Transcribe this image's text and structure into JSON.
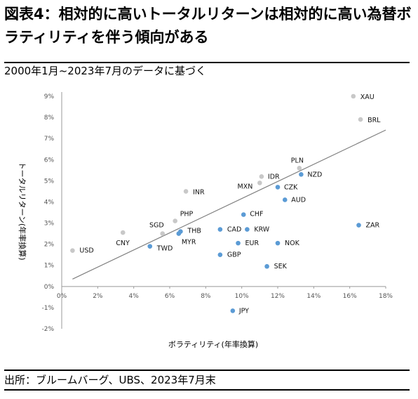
{
  "header": {
    "title": "図表4：相対的に高いトータルリターンは相対的に高い為替ボラティリティを伴う傾向がある",
    "subtitle": "2000年1月~2023年7月のデータに基づく"
  },
  "footer": {
    "source": "出所：ブルームバーグ、UBS、2023年7月末"
  },
  "colors": {
    "highlight": "#5b9bd5",
    "other": "#c8c8c8",
    "trendline": "#808080"
  },
  "chart_data": {
    "type": "scatter",
    "xlabel": "ボラティリティ(年率換算)",
    "ylabel": "トータルリターン(年率換算)",
    "xlim": [
      0,
      18
    ],
    "ylim": [
      -2,
      9
    ],
    "x_ticks": [
      "0%",
      "2%",
      "4%",
      "6%",
      "8%",
      "10%",
      "12%",
      "14%",
      "16%",
      "18%"
    ],
    "y_ticks": [
      "9%",
      "8%",
      "7%",
      "6%",
      "5%",
      "4%",
      "3%",
      "2%",
      "1%",
      "0%",
      "-1%",
      "-2%"
    ],
    "trendline": {
      "x": [
        0.6,
        18.0
      ],
      "y": [
        0.35,
        7.4
      ]
    },
    "points": [
      {
        "label": "XAU",
        "x": 16.2,
        "y": 9.0,
        "group": "other"
      },
      {
        "label": "BRL",
        "x": 16.6,
        "y": 7.9,
        "group": "other"
      },
      {
        "label": "PLN",
        "x": 13.2,
        "y": 5.6,
        "group": "other"
      },
      {
        "label": "NZD",
        "x": 13.3,
        "y": 5.3,
        "group": "highlight"
      },
      {
        "label": "IDR",
        "x": 11.1,
        "y": 5.2,
        "group": "other"
      },
      {
        "label": "MXN",
        "x": 11.0,
        "y": 4.9,
        "group": "other"
      },
      {
        "label": "CZK",
        "x": 12.0,
        "y": 4.7,
        "group": "highlight"
      },
      {
        "label": "INR",
        "x": 6.9,
        "y": 4.5,
        "group": "other"
      },
      {
        "label": "AUD",
        "x": 12.4,
        "y": 4.1,
        "group": "highlight"
      },
      {
        "label": "CHF",
        "x": 10.1,
        "y": 3.4,
        "group": "highlight"
      },
      {
        "label": "PHP",
        "x": 6.3,
        "y": 3.1,
        "group": "other"
      },
      {
        "label": "ZAR",
        "x": 16.5,
        "y": 2.9,
        "group": "highlight"
      },
      {
        "label": "CAD",
        "x": 8.8,
        "y": 2.7,
        "group": "highlight"
      },
      {
        "label": "KRW",
        "x": 10.3,
        "y": 2.7,
        "group": "highlight"
      },
      {
        "label": "SGD",
        "x": 5.6,
        "y": 2.5,
        "group": "other"
      },
      {
        "label": "CNY",
        "x": 3.4,
        "y": 2.55,
        "group": "other"
      },
      {
        "label": "THB",
        "x": 6.6,
        "y": 2.6,
        "group": "highlight"
      },
      {
        "label": "MYR",
        "x": 6.5,
        "y": 2.5,
        "group": "highlight"
      },
      {
        "label": "EUR",
        "x": 9.8,
        "y": 2.05,
        "group": "highlight"
      },
      {
        "label": "NOK",
        "x": 12.0,
        "y": 2.05,
        "group": "highlight"
      },
      {
        "label": "TWD",
        "x": 4.9,
        "y": 1.9,
        "group": "highlight"
      },
      {
        "label": "USD",
        "x": 0.6,
        "y": 1.7,
        "group": "other"
      },
      {
        "label": "GBP",
        "x": 8.8,
        "y": 1.5,
        "group": "highlight"
      },
      {
        "label": "SEK",
        "x": 11.4,
        "y": 0.95,
        "group": "highlight"
      },
      {
        "label": "JPY",
        "x": 9.5,
        "y": -1.15,
        "group": "highlight"
      }
    ]
  }
}
